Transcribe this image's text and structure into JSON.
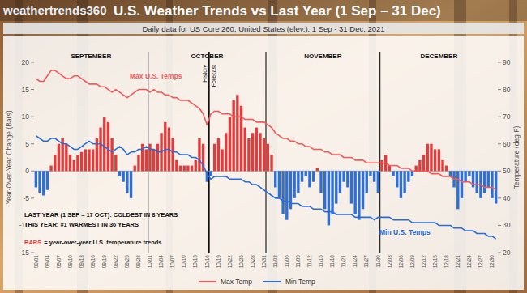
{
  "chart_data": {
    "type": "bar",
    "brand": "weathertrends360",
    "title": "U.S. Weather Trends vs Last Year (1 Sep – 31 Dec)",
    "subtitle": "Daily data for US Core 260, United States (elev.): 1 Sep - 31 Dec, 2021",
    "ylabel": "Year-Over-Year Change (Bars)",
    "y2label": "Temperature (deg F)",
    "note_lines": [
      "LAST YEAR (1 SEP – 17 OCT): COLDEST IN 8 YEARS",
      "THIS YEAR: #1 WARMEST IN 36 YEARS"
    ],
    "bars_note": "= year-over-year U.S. temperature trends",
    "months": [
      {
        "label": "SEPTEMBER",
        "days": 30
      },
      {
        "label": "OCTOBER",
        "days": 31
      },
      {
        "label": "NOVEMBER",
        "days": 30
      },
      {
        "label": "DECEMBER",
        "days": 31
      }
    ],
    "forecast_divider": {
      "at": "10/16",
      "labels": [
        "History",
        "Forecast"
      ]
    },
    "categories": [
      "09/01",
      null,
      null,
      "09/04",
      null,
      null,
      "09/07",
      null,
      null,
      "09/10",
      null,
      null,
      "09/13",
      null,
      null,
      "09/16",
      null,
      null,
      "09/19",
      null,
      null,
      "09/22",
      null,
      null,
      "09/25",
      null,
      null,
      "09/28",
      null,
      null,
      "10/01",
      null,
      null,
      "10/04",
      null,
      null,
      "10/07",
      null,
      null,
      "10/10",
      null,
      null,
      "10/13",
      null,
      null,
      "10/16",
      null,
      null,
      "10/19",
      null,
      null,
      "10/22",
      null,
      null,
      "10/25",
      null,
      null,
      "10/28",
      null,
      null,
      "10/31",
      null,
      null,
      "11/03",
      null,
      null,
      "11/06",
      null,
      null,
      "11/09",
      null,
      null,
      "11/12",
      null,
      null,
      "11/15",
      null,
      null,
      "11/18",
      null,
      null,
      "11/21",
      null,
      null,
      "11/24",
      null,
      null,
      "11/27",
      null,
      null,
      "11/30",
      null,
      null,
      "12/03",
      null,
      null,
      "12/06",
      null,
      null,
      "12/09",
      null,
      null,
      "12/12",
      null,
      null,
      "12/15",
      null,
      null,
      "12/18",
      null,
      null,
      "12/21",
      null,
      null,
      "12/24",
      null,
      null,
      "12/27",
      null,
      null,
      "12/30",
      null
    ],
    "series": [
      {
        "name": "BARS",
        "type": "bar",
        "values": [
          -3,
          -4,
          -4.5,
          -3.5,
          1,
          3,
          5,
          6,
          5,
          3,
          2,
          3,
          3.5,
          4,
          4,
          4,
          6,
          8,
          10,
          9,
          6,
          3,
          -1,
          -2,
          -4,
          -5,
          1,
          3,
          5,
          4,
          5,
          4,
          5,
          7,
          9,
          8,
          6,
          2,
          1,
          1,
          1,
          1,
          2,
          6,
          5,
          -2,
          -1,
          5,
          6,
          4,
          7,
          10,
          13,
          14,
          12,
          8,
          6,
          7,
          8,
          7,
          6,
          5,
          3,
          -3,
          -5,
          -8,
          -9,
          -7,
          -5,
          -4,
          -2,
          -1,
          -3,
          -2,
          0.5,
          -4,
          -7,
          -10,
          -8,
          -6,
          -4,
          -2,
          -3,
          -6,
          -8,
          -9,
          -7,
          -4,
          -1,
          -2,
          -4,
          2,
          3,
          1,
          -1,
          -3,
          -5,
          -4,
          -2,
          -1,
          1,
          2,
          3,
          5,
          5,
          4,
          4,
          2,
          1,
          -1,
          -3,
          -7,
          -5,
          -2,
          -1,
          -3,
          -4,
          -5,
          -4,
          -3,
          -5,
          -6
        ],
        "colors": [
          "#2f6fd3",
          "#2f6fd3",
          "#2f6fd3",
          "#2f6fd3",
          "#e23b3b",
          "#e23b3b",
          "#e23b3b",
          "#e23b3b",
          "#e23b3b",
          "#e23b3b",
          "#e23b3b",
          "#e23b3b",
          "#e23b3b",
          "#e23b3b",
          "#e23b3b",
          "#e23b3b",
          "#e23b3b",
          "#e23b3b",
          "#e23b3b",
          "#e23b3b",
          "#e23b3b",
          "#e23b3b",
          "#2f6fd3",
          "#2f6fd3",
          "#2f6fd3",
          "#2f6fd3",
          "#e23b3b",
          "#e23b3b",
          "#e23b3b",
          "#e23b3b",
          "#e23b3b",
          "#e23b3b",
          "#e23b3b",
          "#e23b3b",
          "#e23b3b",
          "#e23b3b",
          "#e23b3b",
          "#e23b3b",
          "#e23b3b",
          "#e23b3b",
          "#e23b3b",
          "#e23b3b",
          "#e23b3b",
          "#e23b3b",
          "#e23b3b",
          "#2f6fd3",
          "#2f6fd3",
          "#e23b3b",
          "#e23b3b",
          "#e23b3b",
          "#e23b3b",
          "#e23b3b",
          "#e23b3b",
          "#e23b3b",
          "#e23b3b",
          "#e23b3b",
          "#e23b3b",
          "#e23b3b",
          "#e23b3b",
          "#e23b3b",
          "#e23b3b",
          "#e23b3b",
          "#e23b3b",
          "#2f6fd3",
          "#2f6fd3",
          "#2f6fd3",
          "#2f6fd3",
          "#2f6fd3",
          "#2f6fd3",
          "#2f6fd3",
          "#2f6fd3",
          "#2f6fd3",
          "#2f6fd3",
          "#2f6fd3",
          "#e23b3b",
          "#2f6fd3",
          "#2f6fd3",
          "#2f6fd3",
          "#2f6fd3",
          "#2f6fd3",
          "#2f6fd3",
          "#2f6fd3",
          "#2f6fd3",
          "#2f6fd3",
          "#2f6fd3",
          "#2f6fd3",
          "#2f6fd3",
          "#2f6fd3",
          "#2f6fd3",
          "#2f6fd3",
          "#2f6fd3",
          "#e23b3b",
          "#e23b3b",
          "#e23b3b",
          "#2f6fd3",
          "#2f6fd3",
          "#2f6fd3",
          "#2f6fd3",
          "#2f6fd3",
          "#2f6fd3",
          "#e23b3b",
          "#e23b3b",
          "#e23b3b",
          "#e23b3b",
          "#e23b3b",
          "#e23b3b",
          "#e23b3b",
          "#e23b3b",
          "#e23b3b",
          "#2f6fd3",
          "#2f6fd3",
          "#2f6fd3",
          "#2f6fd3",
          "#2f6fd3",
          "#2f6fd3",
          "#2f6fd3",
          "#2f6fd3",
          "#2f6fd3",
          "#2f6fd3",
          "#2f6fd3",
          "#2f6fd3",
          "#2f6fd3"
        ]
      },
      {
        "name": "Max Temp",
        "type": "line",
        "axis": "y2",
        "color": "#f05a5a",
        "label": "Max U.S. Temps",
        "values": [
          84,
          83,
          83,
          85,
          87,
          87,
          86,
          85,
          84,
          84,
          85,
          85,
          84,
          83,
          82,
          82,
          82,
          81,
          81,
          80,
          79,
          80,
          79,
          78,
          77,
          78,
          79,
          80,
          80,
          80,
          79,
          80,
          79,
          79,
          78,
          78,
          77,
          77,
          76,
          76,
          76,
          75,
          74,
          73,
          71,
          67,
          71,
          72,
          72,
          71,
          71,
          71,
          70,
          70,
          70,
          69,
          69,
          69,
          68,
          68,
          68,
          67,
          66,
          64,
          63,
          62,
          62,
          61,
          61,
          60,
          60,
          59,
          59,
          58,
          58,
          58,
          57,
          57,
          56,
          56,
          56,
          55,
          55,
          55,
          54,
          54,
          54,
          53,
          53,
          53,
          53,
          53,
          53,
          52,
          52,
          52,
          51,
          51,
          51,
          50,
          50,
          50,
          50,
          50,
          49,
          49,
          49,
          48,
          48,
          48,
          47,
          47,
          46,
          46,
          46,
          45,
          45,
          45,
          44,
          44,
          44,
          43
        ]
      },
      {
        "name": "Min Temp",
        "type": "line",
        "axis": "y2",
        "color": "#2a6dd4",
        "label": "Min U.S. Temps",
        "values": [
          63,
          62,
          61,
          61,
          62,
          62,
          61,
          60,
          60,
          59,
          58,
          58,
          59,
          60,
          61,
          60,
          60,
          60,
          59,
          58,
          57,
          58,
          59,
          58,
          56,
          57,
          57,
          58,
          58,
          59,
          58,
          58,
          57,
          57,
          58,
          58,
          57,
          57,
          56,
          56,
          56,
          55,
          55,
          54,
          52,
          49,
          47,
          48,
          48,
          48,
          48,
          47,
          47,
          47,
          47,
          46,
          46,
          45,
          45,
          44,
          43,
          42,
          41,
          40,
          40,
          39,
          39,
          38,
          38,
          38,
          37,
          37,
          37,
          36,
          36,
          36,
          35,
          35,
          35,
          34,
          34,
          34,
          34,
          34,
          33,
          33,
          33,
          33,
          33,
          32,
          33,
          33,
          33,
          33,
          32,
          32,
          32,
          32,
          32,
          31,
          31,
          31,
          31,
          31,
          31,
          31,
          30,
          30,
          30,
          30,
          29,
          29,
          29,
          28,
          28,
          28,
          27,
          27,
          27,
          26,
          26,
          25
        ]
      }
    ],
    "ylim": [
      -15,
      20
    ],
    "yticks": [
      -15,
      -10,
      -5,
      0,
      5,
      10,
      15,
      20
    ],
    "y2lim": [
      20,
      90
    ],
    "y2ticks": [
      20,
      30,
      40,
      50,
      60,
      70,
      80,
      90
    ],
    "grid": false,
    "legend": "bottom"
  }
}
